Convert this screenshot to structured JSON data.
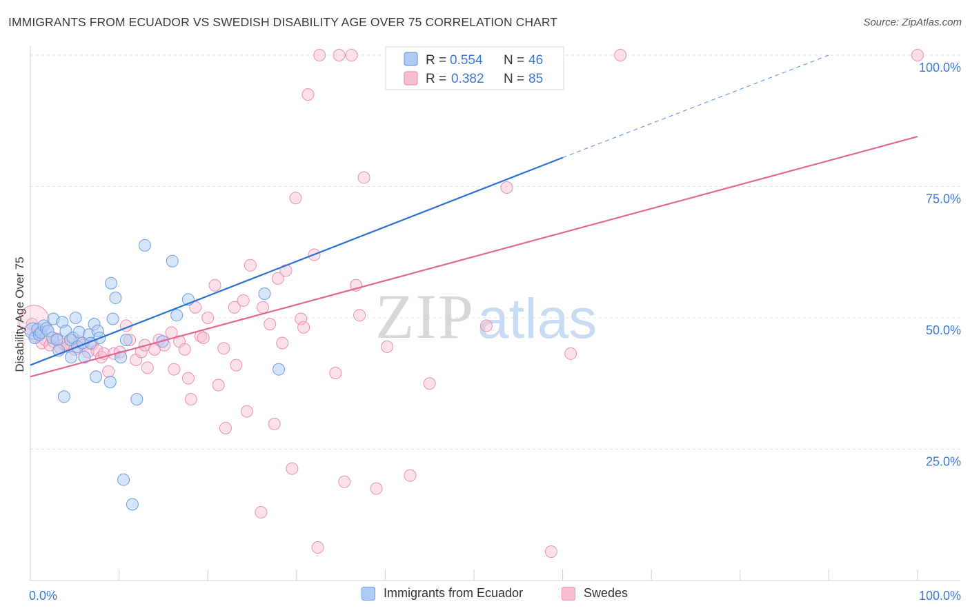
{
  "title": "IMMIGRANTS FROM ECUADOR VS SWEDISH DISABILITY AGE OVER 75 CORRELATION CHART",
  "source": "Source: ZipAtlas.com",
  "watermark": {
    "zip": "ZIP",
    "atlas": "atlas"
  },
  "legend_top": [
    {
      "r_label": "R =",
      "r_value": "0.554",
      "n_label": "N =",
      "n_value": "46"
    },
    {
      "r_label": "R =",
      "r_value": "0.382",
      "n_label": "N =",
      "n_value": "85"
    }
  ],
  "legend_bottom": [
    "Immigrants from Ecuador",
    "Swedes"
  ],
  "colors": {
    "blue_fill": "#aecbf5",
    "blue_stroke": "#6d9ee0",
    "blue_line": "#2a6fd1",
    "pink_fill": "#f8bdd0",
    "pink_stroke": "#e890ad",
    "pink_line": "#e0678f",
    "value_text": "#3a78d4",
    "grid": "#e3e3e3"
  },
  "chart_data": {
    "type": "scatter",
    "title": "IMMIGRANTS FROM ECUADOR VS SWEDISH DISABILITY AGE OVER 75 CORRELATION CHART",
    "xlabel": "",
    "ylabel": "Disability Age Over 75",
    "xlim": [
      0,
      100
    ],
    "ylim": [
      0,
      100
    ],
    "x_tick_labels": [
      "0.0%",
      "100.0%"
    ],
    "y_tick_labels": [
      "25.0%",
      "50.0%",
      "75.0%",
      "100.0%"
    ],
    "y_ticks": [
      25,
      50,
      75,
      100
    ],
    "x_minor_ticks": [
      0,
      10,
      20,
      30,
      40,
      50,
      60,
      70,
      80,
      90,
      100
    ],
    "grid": true,
    "legend_position": "top-center",
    "series": [
      {
        "name": "Immigrants from Ecuador",
        "color": "#6d9ee0",
        "points": [
          [
            0.3,
            47.5
          ],
          [
            0.5,
            46.2
          ],
          [
            0.8,
            47.8
          ],
          [
            1.0,
            46.8
          ],
          [
            1.2,
            47.2
          ],
          [
            1.5,
            48.5
          ],
          [
            1.8,
            48.0
          ],
          [
            2.0,
            47.5
          ],
          [
            2.5,
            46.2
          ],
          [
            2.6,
            49.8
          ],
          [
            3.0,
            45.8
          ],
          [
            3.2,
            43.8
          ],
          [
            3.6,
            49.2
          ],
          [
            3.8,
            35.0
          ],
          [
            4.0,
            47.5
          ],
          [
            4.5,
            45.8
          ],
          [
            4.6,
            42.5
          ],
          [
            4.8,
            46.2
          ],
          [
            5.1,
            50.0
          ],
          [
            5.3,
            44.5
          ],
          [
            5.5,
            47.3
          ],
          [
            5.9,
            45.2
          ],
          [
            6.1,
            42.5
          ],
          [
            6.6,
            46.8
          ],
          [
            6.8,
            45.2
          ],
          [
            7.2,
            48.8
          ],
          [
            7.6,
            47.5
          ],
          [
            7.8,
            46.2
          ],
          [
            7.4,
            38.8
          ],
          [
            9.0,
            37.8
          ],
          [
            9.1,
            56.6
          ],
          [
            9.6,
            53.8
          ],
          [
            9.3,
            49.8
          ],
          [
            10.2,
            42.5
          ],
          [
            10.5,
            19.2
          ],
          [
            10.8,
            45.8
          ],
          [
            11.5,
            14.5
          ],
          [
            12.0,
            34.5
          ],
          [
            12.9,
            63.8
          ],
          [
            14.9,
            45.5
          ],
          [
            16.0,
            60.8
          ],
          [
            16.5,
            50.5
          ],
          [
            17.8,
            53.5
          ],
          [
            26.4,
            54.6
          ],
          [
            28.0,
            40.2
          ],
          [
            59.4,
            100.0
          ]
        ]
      },
      {
        "name": "Swedes",
        "color": "#e890ad",
        "points": [
          [
            0.2,
            48.8
          ],
          [
            0.6,
            46.5
          ],
          [
            1.0,
            47.0
          ],
          [
            1.3,
            45.2
          ],
          [
            1.7,
            45.8
          ],
          [
            2.2,
            44.8
          ],
          [
            2.6,
            45.5
          ],
          [
            3.0,
            46.0
          ],
          [
            3.4,
            44.2
          ],
          [
            3.8,
            45.0
          ],
          [
            4.2,
            44.5
          ],
          [
            4.6,
            45.8
          ],
          [
            5.0,
            44.0
          ],
          [
            5.5,
            45.5
          ],
          [
            6.0,
            44.8
          ],
          [
            6.5,
            43.5
          ],
          [
            7.0,
            45.0
          ],
          [
            7.5,
            43.8
          ],
          [
            8.0,
            42.5
          ],
          [
            8.3,
            43.2
          ],
          [
            8.8,
            39.8
          ],
          [
            9.4,
            43.2
          ],
          [
            10.1,
            43.5
          ],
          [
            10.8,
            48.5
          ],
          [
            11.2,
            45.8
          ],
          [
            11.9,
            42.0
          ],
          [
            12.5,
            43.5
          ],
          [
            12.9,
            44.8
          ],
          [
            13.2,
            40.5
          ],
          [
            14.0,
            44.0
          ],
          [
            14.5,
            45.8
          ],
          [
            15.1,
            44.8
          ],
          [
            15.9,
            47.2
          ],
          [
            16.2,
            40.2
          ],
          [
            16.8,
            45.5
          ],
          [
            17.4,
            44.0
          ],
          [
            17.8,
            38.5
          ],
          [
            18.1,
            34.5
          ],
          [
            18.6,
            52.0
          ],
          [
            19.2,
            46.5
          ],
          [
            19.5,
            46.2
          ],
          [
            20.0,
            50.0
          ],
          [
            20.8,
            56.2
          ],
          [
            21.2,
            37.2
          ],
          [
            21.8,
            44.2
          ],
          [
            22.0,
            29.0
          ],
          [
            23.0,
            52.0
          ],
          [
            23.2,
            41.0
          ],
          [
            24.0,
            53.3
          ],
          [
            24.4,
            32.2
          ],
          [
            24.8,
            60.0
          ],
          [
            26.0,
            13.0
          ],
          [
            26.2,
            52.0
          ],
          [
            27.0,
            48.8
          ],
          [
            27.5,
            29.8
          ],
          [
            27.9,
            57.5
          ],
          [
            28.4,
            45.2
          ],
          [
            28.8,
            59.0
          ],
          [
            29.5,
            21.3
          ],
          [
            29.9,
            72.8
          ],
          [
            30.5,
            49.8
          ],
          [
            30.8,
            48.2
          ],
          [
            31.3,
            92.5
          ],
          [
            32.0,
            62.0
          ],
          [
            32.4,
            6.3
          ],
          [
            32.6,
            100.0
          ],
          [
            34.4,
            39.5
          ],
          [
            34.8,
            100.0
          ],
          [
            35.4,
            18.8
          ],
          [
            36.2,
            100.0
          ],
          [
            36.7,
            56.2
          ],
          [
            37.1,
            50.5
          ],
          [
            37.6,
            76.7
          ],
          [
            39.0,
            17.5
          ],
          [
            40.2,
            44.5
          ],
          [
            42.8,
            20.0
          ],
          [
            45.0,
            37.5
          ],
          [
            51.4,
            48.5
          ],
          [
            53.7,
            74.8
          ],
          [
            54.5,
            100.0
          ],
          [
            58.7,
            5.5
          ],
          [
            60.9,
            43.2
          ],
          [
            66.5,
            100.0
          ],
          [
            100.0,
            100.0
          ],
          [
            0.4,
            49.5
          ]
        ]
      }
    ],
    "trend_lines": [
      {
        "series": "Immigrants from Ecuador",
        "x": [
          0,
          60
        ],
        "y": [
          41.0,
          80.5
        ],
        "dashed_extension": {
          "x": [
            60,
            90
          ],
          "y": [
            80.5,
            100.0
          ]
        }
      },
      {
        "series": "Swedes",
        "x": [
          0,
          100
        ],
        "y": [
          38.8,
          84.5
        ]
      }
    ]
  }
}
